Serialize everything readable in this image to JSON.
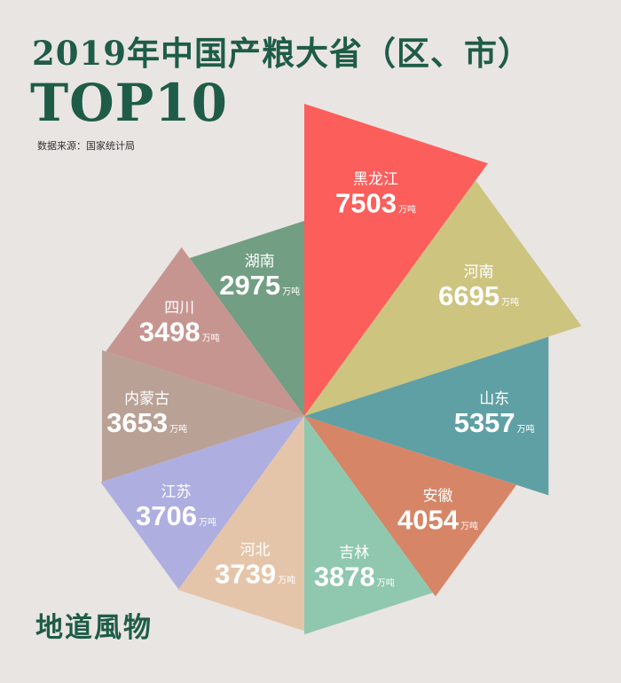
{
  "title": "2019年中国产粮大省（区、市）",
  "subtitle": "TOP10",
  "source": "数据来源：国家统计局",
  "brand": "地道風物",
  "chart_data": {
    "type": "pie",
    "variant": "rose",
    "unit": "万吨",
    "slices": [
      {
        "name": "黑龙江",
        "value": 7503,
        "color": "#fc5e5b"
      },
      {
        "name": "河南",
        "value": 6695,
        "color": "#cdc47f"
      },
      {
        "name": "山东",
        "value": 5357,
        "color": "#5fa0a5"
      },
      {
        "name": "安徽",
        "value": 4054,
        "color": "#d68566"
      },
      {
        "name": "吉林",
        "value": 3878,
        "color": "#8fc8ae"
      },
      {
        "name": "河北",
        "value": 3739,
        "color": "#e5c5a9"
      },
      {
        "name": "江苏",
        "value": 3706,
        "color": "#aeaee1"
      },
      {
        "name": "内蒙古",
        "value": 3653,
        "color": "#b9a196"
      },
      {
        "name": "四川",
        "value": 3498,
        "color": "#c79590"
      },
      {
        "name": "湖南",
        "value": 2975,
        "color": "#729e83"
      }
    ]
  }
}
